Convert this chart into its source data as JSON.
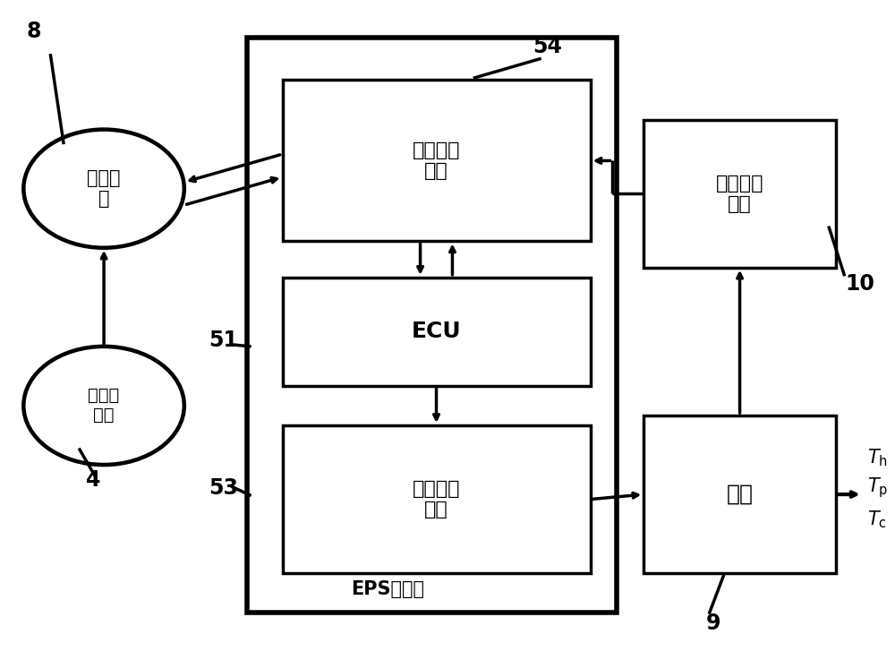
{
  "bg_color": "#ffffff",
  "box_color": "#000000",
  "box_facecolor": "#ffffff",
  "text_color": "#000000",
  "linewidth": 2.5,
  "arrow_linewidth": 2.5,
  "circle1_label": "行车电\n脑",
  "circle2_label": "外部传\n感器",
  "signal_label": "信号通讯\n模块",
  "ecu_label": "ECU",
  "motor_drive_label": "电机驱动\n模块",
  "motor_signal_label": "电机信号\n模块",
  "motor_label": "电机",
  "eps_label": "EPS状态机",
  "label_8": "8",
  "label_4": "4",
  "label_51": "51",
  "label_53": "53",
  "label_54": "54",
  "label_9": "9",
  "label_10": "10",
  "title_fontsize": 18,
  "label_fontsize": 16,
  "num_fontsize": 17
}
